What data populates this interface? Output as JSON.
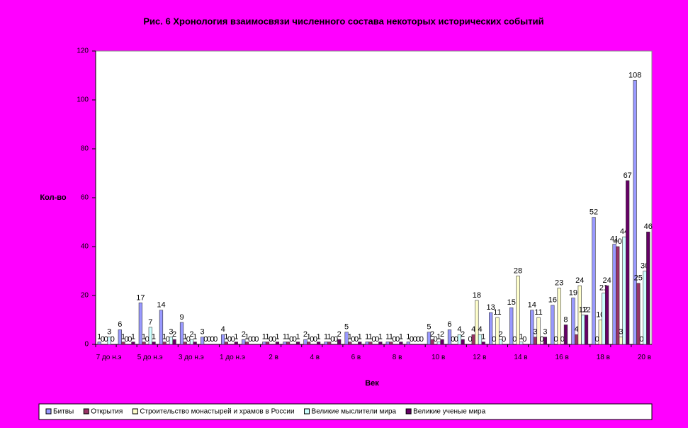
{
  "chart_data": {
    "type": "bar",
    "title": "Рис. 6    Хронология взаимосвязи численного состава некоторых исторических событий",
    "y_label": "Кол-во",
    "x_label": "Век",
    "categories": [
      "7 до н.э",
      null,
      "5 до н.э",
      null,
      "3 до н.э",
      null,
      "1 до н.э",
      null,
      "2 в",
      null,
      "4 в",
      null,
      "6 в",
      null,
      "8 в",
      null,
      "10 в",
      null,
      "12 в",
      null,
      "14 в",
      null,
      "16 в",
      null,
      "18 в",
      null,
      "20 в"
    ],
    "series": [
      {
        "name": "Битвы",
        "color": "#9999ff",
        "values": [
          1,
          6,
          17,
          14,
          9,
          3,
          4,
          2,
          1,
          1,
          2,
          1,
          5,
          1,
          1,
          1,
          5,
          6,
          0,
          13,
          15,
          14,
          16,
          19,
          52,
          41,
          108
        ]
      },
      {
        "name": "Открытия",
        "color": "#993366",
        "values": [
          0,
          1,
          1,
          1,
          1,
          0,
          1,
          1,
          1,
          1,
          1,
          1,
          1,
          1,
          1,
          0,
          2,
          0,
          4,
          0,
          0,
          3,
          0,
          4,
          0,
          40,
          25
        ]
      },
      {
        "name": "Строительство монастырей и храмов в России",
        "color": "#ffffcc",
        "values": [
          0,
          0,
          0,
          0,
          0,
          0,
          0,
          0,
          0,
          0,
          0,
          0,
          0,
          0,
          0,
          0,
          0,
          0,
          18,
          11,
          28,
          11,
          23,
          24,
          10,
          3,
          0
        ]
      },
      {
        "name": "Великие мыслители мира",
        "color": "#ccffff",
        "values": [
          3,
          0,
          7,
          3,
          2,
          0,
          0,
          0,
          0,
          0,
          0,
          0,
          0,
          0,
          0,
          0,
          1,
          4,
          4,
          2,
          1,
          0,
          0,
          12,
          21,
          44,
          30
        ]
      },
      {
        "name": "Великие ученые мира",
        "color": "#660066",
        "values": [
          0,
          1,
          1,
          2,
          1,
          0,
          1,
          0,
          1,
          1,
          1,
          2,
          1,
          1,
          1,
          0,
          2,
          2,
          1,
          0,
          0,
          3,
          8,
          12,
          24,
          67,
          46
        ]
      }
    ],
    "ylim": [
      0,
      120
    ],
    "yticks": [
      0,
      20,
      40,
      60,
      80,
      100,
      120
    ],
    "legend": "bottom"
  }
}
